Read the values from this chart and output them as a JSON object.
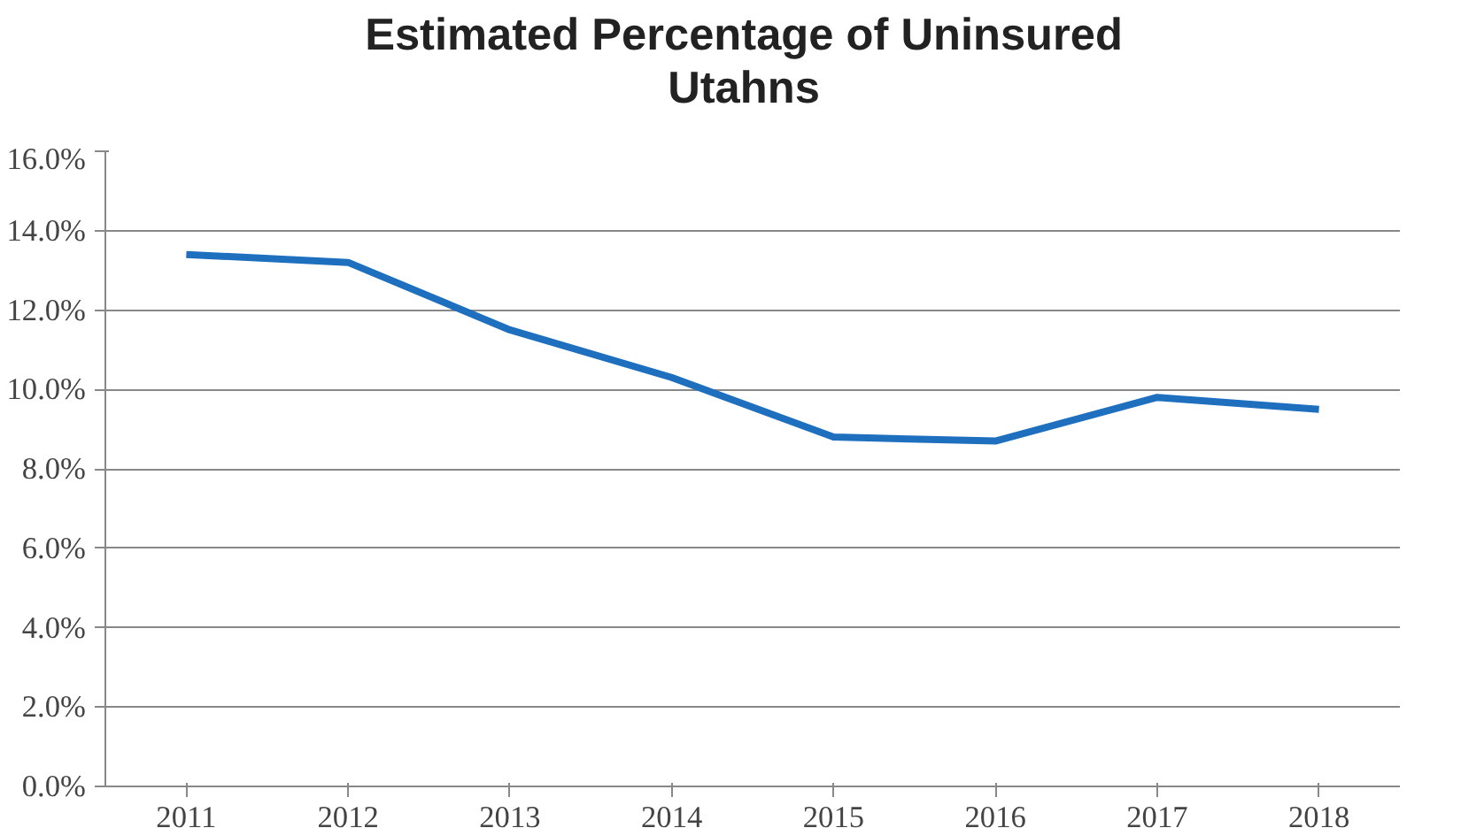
{
  "chart_data": {
    "type": "line",
    "title": "Estimated Percentage of Uninsured\nUtahns",
    "categories": [
      "2011",
      "2012",
      "2013",
      "2014",
      "2015",
      "2016",
      "2017",
      "2018"
    ],
    "series": [
      {
        "color": "#1f6fbf",
        "values": [
          13.4,
          13.2,
          11.5,
          10.3,
          8.8,
          8.7,
          9.8,
          9.5
        ]
      }
    ],
    "ylim": [
      0,
      16
    ],
    "yticks": [
      {
        "value": 0,
        "label": "0.0%"
      },
      {
        "value": 2,
        "label": "2.0%"
      },
      {
        "value": 4,
        "label": "4.0%"
      },
      {
        "value": 6,
        "label": "6.0%"
      },
      {
        "value": 8,
        "label": "8.0%"
      },
      {
        "value": 10,
        "label": "10.0%"
      },
      {
        "value": 12,
        "label": "12.0%"
      },
      {
        "value": 14,
        "label": "14.0%"
      },
      {
        "value": 16,
        "label": "16.0%"
      }
    ],
    "grid": "y",
    "marker": "none",
    "line_style": "solid"
  }
}
